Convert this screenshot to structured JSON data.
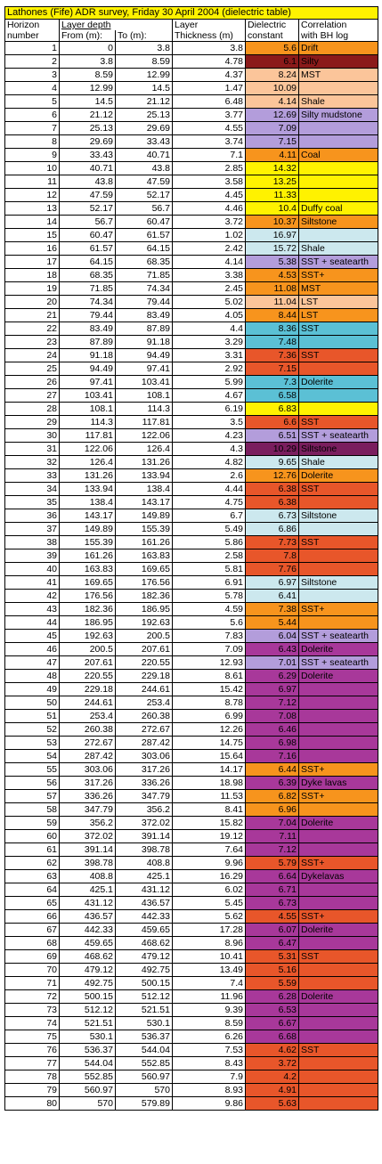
{
  "title": "Lathones (Fife) ADR survey, Friday 30 April 2004 (dielectric table)",
  "headers": {
    "horizon_1": "Horizon",
    "horizon_2": "number",
    "layer_depth": "Layer depth",
    "from": "From (m):",
    "to": "To (m):",
    "layer_1": "Layer",
    "layer_2": "Thickness (m)",
    "dielectric_1": "Dielectric",
    "dielectric_2": "constant",
    "corr_1": "Correlation",
    "corr_2": "with BH log"
  },
  "colors": {
    "drift": "#f7941d",
    "maroon": "#8b1a1a",
    "peach": "#fbc59a",
    "lavender": "#b39ddb",
    "orange": "#f7941d",
    "yellow": "#fff200",
    "lightblue": "#cce8ee",
    "teal": "#5bc0d5",
    "red": "#e8562a",
    "purple": "#a8389a",
    "darkpurple": "#7a1e5e"
  },
  "rows": [
    {
      "h": "1",
      "from": "0",
      "to": "3.8",
      "thk": "3.8",
      "k": "5.6",
      "corr": "Drift",
      "color": "#f7941d"
    },
    {
      "h": "2",
      "from": "3.8",
      "to": "8.59",
      "thk": "4.78",
      "k": "6.1",
      "corr": "Silty",
      "color": "#8b1a1a"
    },
    {
      "h": "3",
      "from": "8.59",
      "to": "12.99",
      "thk": "4.37",
      "k": "8.24",
      "corr": "MST",
      "color": "#fbc59a"
    },
    {
      "h": "4",
      "from": "12.99",
      "to": "14.5",
      "thk": "1.47",
      "k": "10.09",
      "corr": "",
      "color": "#fbc59a"
    },
    {
      "h": "5",
      "from": "14.5",
      "to": "21.12",
      "thk": "6.48",
      "k": "4.14",
      "corr": "Shale",
      "color": "#fbc59a"
    },
    {
      "h": "6",
      "from": "21.12",
      "to": "25.13",
      "thk": "3.77",
      "k": "12.69",
      "corr": "Silty mudstone",
      "color": "#b39ddb"
    },
    {
      "h": "7",
      "from": "25.13",
      "to": "29.69",
      "thk": "4.55",
      "k": "7.09",
      "corr": "",
      "color": "#b39ddb"
    },
    {
      "h": "8",
      "from": "29.69",
      "to": "33.43",
      "thk": "3.74",
      "k": "7.15",
      "corr": "",
      "color": "#b39ddb"
    },
    {
      "h": "9",
      "from": "33.43",
      "to": "40.71",
      "thk": "7.1",
      "k": "4.11",
      "corr": "Coal",
      "color": "#f7941d"
    },
    {
      "h": "10",
      "from": "40.71",
      "to": "43.8",
      "thk": "2.85",
      "k": "14.32",
      "corr": "",
      "color": "#fff200"
    },
    {
      "h": "11",
      "from": "43.8",
      "to": "47.59",
      "thk": "3.58",
      "k": "13.25",
      "corr": "",
      "color": "#fff200"
    },
    {
      "h": "12",
      "from": "47.59",
      "to": "52.17",
      "thk": "4.45",
      "k": "11.33",
      "corr": "",
      "color": "#fff200"
    },
    {
      "h": "13",
      "from": "52.17",
      "to": "56.7",
      "thk": "4.46",
      "k": "10.4",
      "corr": "Duffy coal",
      "color": "#fff200"
    },
    {
      "h": "14",
      "from": "56.7",
      "to": "60.47",
      "thk": "3.72",
      "k": "10.37",
      "corr": "Siltstone",
      "color": "#f7941d"
    },
    {
      "h": "15",
      "from": "60.47",
      "to": "61.57",
      "thk": "1.02",
      "k": "16.97",
      "corr": "",
      "color": "#cce8ee"
    },
    {
      "h": "16",
      "from": "61.57",
      "to": "64.15",
      "thk": "2.42",
      "k": "15.72",
      "corr": "Shale",
      "color": "#cce8ee"
    },
    {
      "h": "17",
      "from": "64.15",
      "to": "68.35",
      "thk": "4.14",
      "k": "5.38",
      "corr": "SST + seatearth",
      "color": "#b39ddb"
    },
    {
      "h": "18",
      "from": "68.35",
      "to": "71.85",
      "thk": "3.38",
      "k": "4.53",
      "corr": "SST+",
      "color": "#f7941d"
    },
    {
      "h": "19",
      "from": "71.85",
      "to": "74.34",
      "thk": "2.45",
      "k": "11.08",
      "corr": "MST",
      "color": "#f7941d"
    },
    {
      "h": "20",
      "from": "74.34",
      "to": "79.44",
      "thk": "5.02",
      "k": "11.04",
      "corr": "LST",
      "color": "#fbc59a"
    },
    {
      "h": "21",
      "from": "79.44",
      "to": "83.49",
      "thk": "4.05",
      "k": "8.44",
      "corr": "LST",
      "color": "#f7941d"
    },
    {
      "h": "22",
      "from": "83.49",
      "to": "87.89",
      "thk": "4.4",
      "k": "8.36",
      "corr": "SST",
      "color": "#5bc0d5"
    },
    {
      "h": "23",
      "from": "87.89",
      "to": "91.18",
      "thk": "3.29",
      "k": "7.48",
      "corr": "",
      "color": "#5bc0d5"
    },
    {
      "h": "24",
      "from": "91.18",
      "to": "94.49",
      "thk": "3.31",
      "k": "7.36",
      "corr": "SST",
      "color": "#e8562a"
    },
    {
      "h": "25",
      "from": "94.49",
      "to": "97.41",
      "thk": "2.92",
      "k": "7.15",
      "corr": "",
      "color": "#e8562a"
    },
    {
      "h": "26",
      "from": "97.41",
      "to": "103.41",
      "thk": "5.99",
      "k": "7.3",
      "corr": "Dolerite",
      "color": "#5bc0d5"
    },
    {
      "h": "27",
      "from": "103.41",
      "to": "108.1",
      "thk": "4.67",
      "k": "6.58",
      "corr": "",
      "color": "#5bc0d5"
    },
    {
      "h": "28",
      "from": "108.1",
      "to": "114.3",
      "thk": "6.19",
      "k": "6.83",
      "corr": "",
      "color": "#fff200"
    },
    {
      "h": "29",
      "from": "114.3",
      "to": "117.81",
      "thk": "3.5",
      "k": "6.6",
      "corr": "SST",
      "color": "#e8562a"
    },
    {
      "h": "30",
      "from": "117.81",
      "to": "122.06",
      "thk": "4.23",
      "k": "6.51",
      "corr": "SST + seatearth",
      "color": "#b39ddb"
    },
    {
      "h": "31",
      "from": "122.06",
      "to": "126.4",
      "thk": "4.3",
      "k": "10.29",
      "corr": "Siltstone",
      "color": "#7a1e5e"
    },
    {
      "h": "32",
      "from": "126.4",
      "to": "131.26",
      "thk": "4.82",
      "k": "9.65",
      "corr": "Shale",
      "color": "#cce8ee"
    },
    {
      "h": "33",
      "from": "131.26",
      "to": "133.94",
      "thk": "2.6",
      "k": "12.76",
      "corr": "Dolerite",
      "color": "#f7941d"
    },
    {
      "h": "34",
      "from": "133.94",
      "to": "138.4",
      "thk": "4.44",
      "k": "6.38",
      "corr": "SST",
      "color": "#e8562a"
    },
    {
      "h": "35",
      "from": "138.4",
      "to": "143.17",
      "thk": "4.75",
      "k": "6.38",
      "corr": "",
      "color": "#e8562a"
    },
    {
      "h": "36",
      "from": "143.17",
      "to": "149.89",
      "thk": "6.7",
      "k": "6.73",
      "corr": "Siltstone",
      "color": "#cce8ee"
    },
    {
      "h": "37",
      "from": "149.89",
      "to": "155.39",
      "thk": "5.49",
      "k": "6.86",
      "corr": "",
      "color": "#cce8ee"
    },
    {
      "h": "38",
      "from": "155.39",
      "to": "161.26",
      "thk": "5.86",
      "k": "7.73",
      "corr": "SST",
      "color": "#e8562a"
    },
    {
      "h": "39",
      "from": "161.26",
      "to": "163.83",
      "thk": "2.58",
      "k": "7.8",
      "corr": "",
      "color": "#e8562a"
    },
    {
      "h": "40",
      "from": "163.83",
      "to": "169.65",
      "thk": "5.81",
      "k": "7.76",
      "corr": "",
      "color": "#e8562a"
    },
    {
      "h": "41",
      "from": "169.65",
      "to": "176.56",
      "thk": "6.91",
      "k": "6.97",
      "corr": "Siltstone",
      "color": "#cce8ee"
    },
    {
      "h": "42",
      "from": "176.56",
      "to": "182.36",
      "thk": "5.78",
      "k": "6.41",
      "corr": "",
      "color": "#cce8ee"
    },
    {
      "h": "43",
      "from": "182.36",
      "to": "186.95",
      "thk": "4.59",
      "k": "7.38",
      "corr": "SST+",
      "color": "#f7941d"
    },
    {
      "h": "44",
      "from": "186.95",
      "to": "192.63",
      "thk": "5.6",
      "k": "5.44",
      "corr": "",
      "color": "#f7941d"
    },
    {
      "h": "45",
      "from": "192.63",
      "to": "200.5",
      "thk": "7.83",
      "k": "6.04",
      "corr": "SST + seatearth",
      "color": "#b39ddb"
    },
    {
      "h": "46",
      "from": "200.5",
      "to": "207.61",
      "thk": "7.09",
      "k": "6.43",
      "corr": "Dolerite",
      "color": "#a8389a"
    },
    {
      "h": "47",
      "from": "207.61",
      "to": "220.55",
      "thk": "12.93",
      "k": "7.01",
      "corr": "SST + seatearth",
      "color": "#b39ddb"
    },
    {
      "h": "48",
      "from": "220.55",
      "to": "229.18",
      "thk": "8.61",
      "k": "6.29",
      "corr": "Dolerite",
      "color": "#a8389a"
    },
    {
      "h": "49",
      "from": "229.18",
      "to": "244.61",
      "thk": "15.42",
      "k": "6.97",
      "corr": "",
      "color": "#a8389a"
    },
    {
      "h": "50",
      "from": "244.61",
      "to": "253.4",
      "thk": "8.78",
      "k": "7.12",
      "corr": "",
      "color": "#a8389a"
    },
    {
      "h": "51",
      "from": "253.4",
      "to": "260.38",
      "thk": "6.99",
      "k": "7.08",
      "corr": "",
      "color": "#a8389a"
    },
    {
      "h": "52",
      "from": "260.38",
      "to": "272.67",
      "thk": "12.26",
      "k": "6.46",
      "corr": "",
      "color": "#a8389a"
    },
    {
      "h": "53",
      "from": "272.67",
      "to": "287.42",
      "thk": "14.75",
      "k": "6.98",
      "corr": "",
      "color": "#a8389a"
    },
    {
      "h": "54",
      "from": "287.42",
      "to": "303.06",
      "thk": "15.64",
      "k": "7.16",
      "corr": "",
      "color": "#a8389a"
    },
    {
      "h": "55",
      "from": "303.06",
      "to": "317.26",
      "thk": "14.17",
      "k": "6.44",
      "corr": "SST+",
      "color": "#f7941d"
    },
    {
      "h": "56",
      "from": "317.26",
      "to": "336.26",
      "thk": "18.98",
      "k": "6.39",
      "corr": "Dyke lavas",
      "color": "#a8389a"
    },
    {
      "h": "57",
      "from": "336.26",
      "to": "347.79",
      "thk": "11.53",
      "k": "6.82",
      "corr": "SST+",
      "color": "#f7941d"
    },
    {
      "h": "58",
      "from": "347.79",
      "to": "356.2",
      "thk": "8.41",
      "k": "6.96",
      "corr": "",
      "color": "#f7941d"
    },
    {
      "h": "59",
      "from": "356.2",
      "to": "372.02",
      "thk": "15.82",
      "k": "7.04",
      "corr": "Dolerite",
      "color": "#a8389a"
    },
    {
      "h": "60",
      "from": "372.02",
      "to": "391.14",
      "thk": "19.12",
      "k": "7.11",
      "corr": "",
      "color": "#a8389a"
    },
    {
      "h": "61",
      "from": "391.14",
      "to": "398.78",
      "thk": "7.64",
      "k": "7.12",
      "corr": "",
      "color": "#a8389a"
    },
    {
      "h": "62",
      "from": "398.78",
      "to": "408.8",
      "thk": "9.96",
      "k": "5.79",
      "corr": "SST+",
      "color": "#e8562a"
    },
    {
      "h": "63",
      "from": "408.8",
      "to": "425.1",
      "thk": "16.29",
      "k": "6.64",
      "corr": "Dykelavas",
      "color": "#a8389a"
    },
    {
      "h": "64",
      "from": "425.1",
      "to": "431.12",
      "thk": "6.02",
      "k": "6.71",
      "corr": "",
      "color": "#a8389a"
    },
    {
      "h": "65",
      "from": "431.12",
      "to": "436.57",
      "thk": "5.45",
      "k": "6.73",
      "corr": "",
      "color": "#a8389a"
    },
    {
      "h": "66",
      "from": "436.57",
      "to": "442.33",
      "thk": "5.62",
      "k": "4.55",
      "corr": "SST+",
      "color": "#e8562a"
    },
    {
      "h": "67",
      "from": "442.33",
      "to": "459.65",
      "thk": "17.28",
      "k": "6.07",
      "corr": "Dolerite",
      "color": "#a8389a"
    },
    {
      "h": "68",
      "from": "459.65",
      "to": "468.62",
      "thk": "8.96",
      "k": "6.47",
      "corr": "",
      "color": "#a8389a"
    },
    {
      "h": "69",
      "from": "468.62",
      "to": "479.12",
      "thk": "10.41",
      "k": "5.31",
      "corr": "SST",
      "color": "#e8562a"
    },
    {
      "h": "70",
      "from": "479.12",
      "to": "492.75",
      "thk": "13.49",
      "k": "5.16",
      "corr": "",
      "color": "#e8562a"
    },
    {
      "h": "71",
      "from": "492.75",
      "to": "500.15",
      "thk": "7.4",
      "k": "5.59",
      "corr": "",
      "color": "#e8562a"
    },
    {
      "h": "72",
      "from": "500.15",
      "to": "512.12",
      "thk": "11.96",
      "k": "6.28",
      "corr": "Dolerite",
      "color": "#a8389a"
    },
    {
      "h": "73",
      "from": "512.12",
      "to": "521.51",
      "thk": "9.39",
      "k": "6.53",
      "corr": "",
      "color": "#a8389a"
    },
    {
      "h": "74",
      "from": "521.51",
      "to": "530.1",
      "thk": "8.59",
      "k": "6.67",
      "corr": "",
      "color": "#a8389a"
    },
    {
      "h": "75",
      "from": "530.1",
      "to": "536.37",
      "thk": "6.26",
      "k": "6.68",
      "corr": "",
      "color": "#a8389a"
    },
    {
      "h": "76",
      "from": "536.37",
      "to": "544.04",
      "thk": "7.53",
      "k": "4.62",
      "corr": "SST",
      "color": "#e8562a"
    },
    {
      "h": "77",
      "from": "544.04",
      "to": "552.85",
      "thk": "8.43",
      "k": "3.72",
      "corr": "",
      "color": "#e8562a"
    },
    {
      "h": "78",
      "from": "552.85",
      "to": "560.97",
      "thk": "7.9",
      "k": "4.2",
      "corr": "",
      "color": "#e8562a"
    },
    {
      "h": "79",
      "from": "560.97",
      "to": "570",
      "thk": "8.93",
      "k": "4.91",
      "corr": "",
      "color": "#e8562a"
    },
    {
      "h": "80",
      "from": "570",
      "to": "579.89",
      "thk": "9.86",
      "k": "5.63",
      "corr": "",
      "color": "#e8562a"
    }
  ]
}
